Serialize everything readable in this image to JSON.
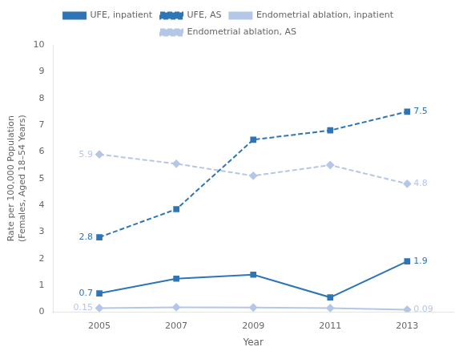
{
  "chart_data": {
    "type": "line",
    "x": [
      2005,
      2007,
      2009,
      2011,
      2013
    ],
    "series": [
      {
        "name": "UFE, inpatient",
        "color": "#2E75B6",
        "marker": "square",
        "line_style": "solid",
        "values": [
          0.7,
          1.25,
          1.4,
          0.55,
          1.9
        ]
      },
      {
        "name": "UFE, AS",
        "color": "#2E75B6",
        "marker": "square",
        "line_style": "dashed",
        "values": [
          2.8,
          3.85,
          6.45,
          6.8,
          7.5
        ]
      },
      {
        "name": "Endometrial ablation, inpatient",
        "color": "#B4C7E7",
        "marker": "diamond",
        "line_style": "solid",
        "values": [
          0.15,
          0.18,
          0.17,
          0.15,
          0.09
        ]
      },
      {
        "name": "Endometrial ablation, AS",
        "color": "#B4C7E7",
        "marker": "diamond",
        "line_style": "dashed",
        "values": [
          5.9,
          5.55,
          5.1,
          5.5,
          4.8
        ]
      }
    ],
    "xlabel": "Year",
    "ylabel": "Rate per 100,000 Population\n(Females, Aged 18–54 Years)",
    "xlim": [
      2003.8,
      2014.2
    ],
    "xticks": [
      2005,
      2007,
      2009,
      2011,
      2013
    ],
    "ylim": [
      0,
      10
    ],
    "yticks": [
      0,
      1,
      2,
      3,
      4,
      5,
      6,
      7,
      8,
      9,
      10
    ],
    "grid": false,
    "legend": "top",
    "annotations": [
      {
        "text": "0.7",
        "x": 2005,
        "y": 0.7,
        "color": "#2E75B6"
      },
      {
        "text": "1.9",
        "x": 2013,
        "y": 1.9,
        "color": "#2E75B6"
      },
      {
        "text": "2.8",
        "x": 2005,
        "y": 2.8,
        "color": "#2E75B6"
      },
      {
        "text": "7.5",
        "x": 2013,
        "y": 7.5,
        "color": "#2E75B6"
      },
      {
        "text": "0.15",
        "x": 2005,
        "y": 0.15,
        "color": "#B4C7E7"
      },
      {
        "text": "0.09",
        "x": 2013,
        "y": 0.09,
        "color": "#B4C7E7"
      },
      {
        "text": "5.9",
        "x": 2005,
        "y": 5.9,
        "color": "#B4C7E7"
      },
      {
        "text": "4.8",
        "x": 2013,
        "y": 4.8,
        "color": "#B4C7E7"
      }
    ]
  }
}
